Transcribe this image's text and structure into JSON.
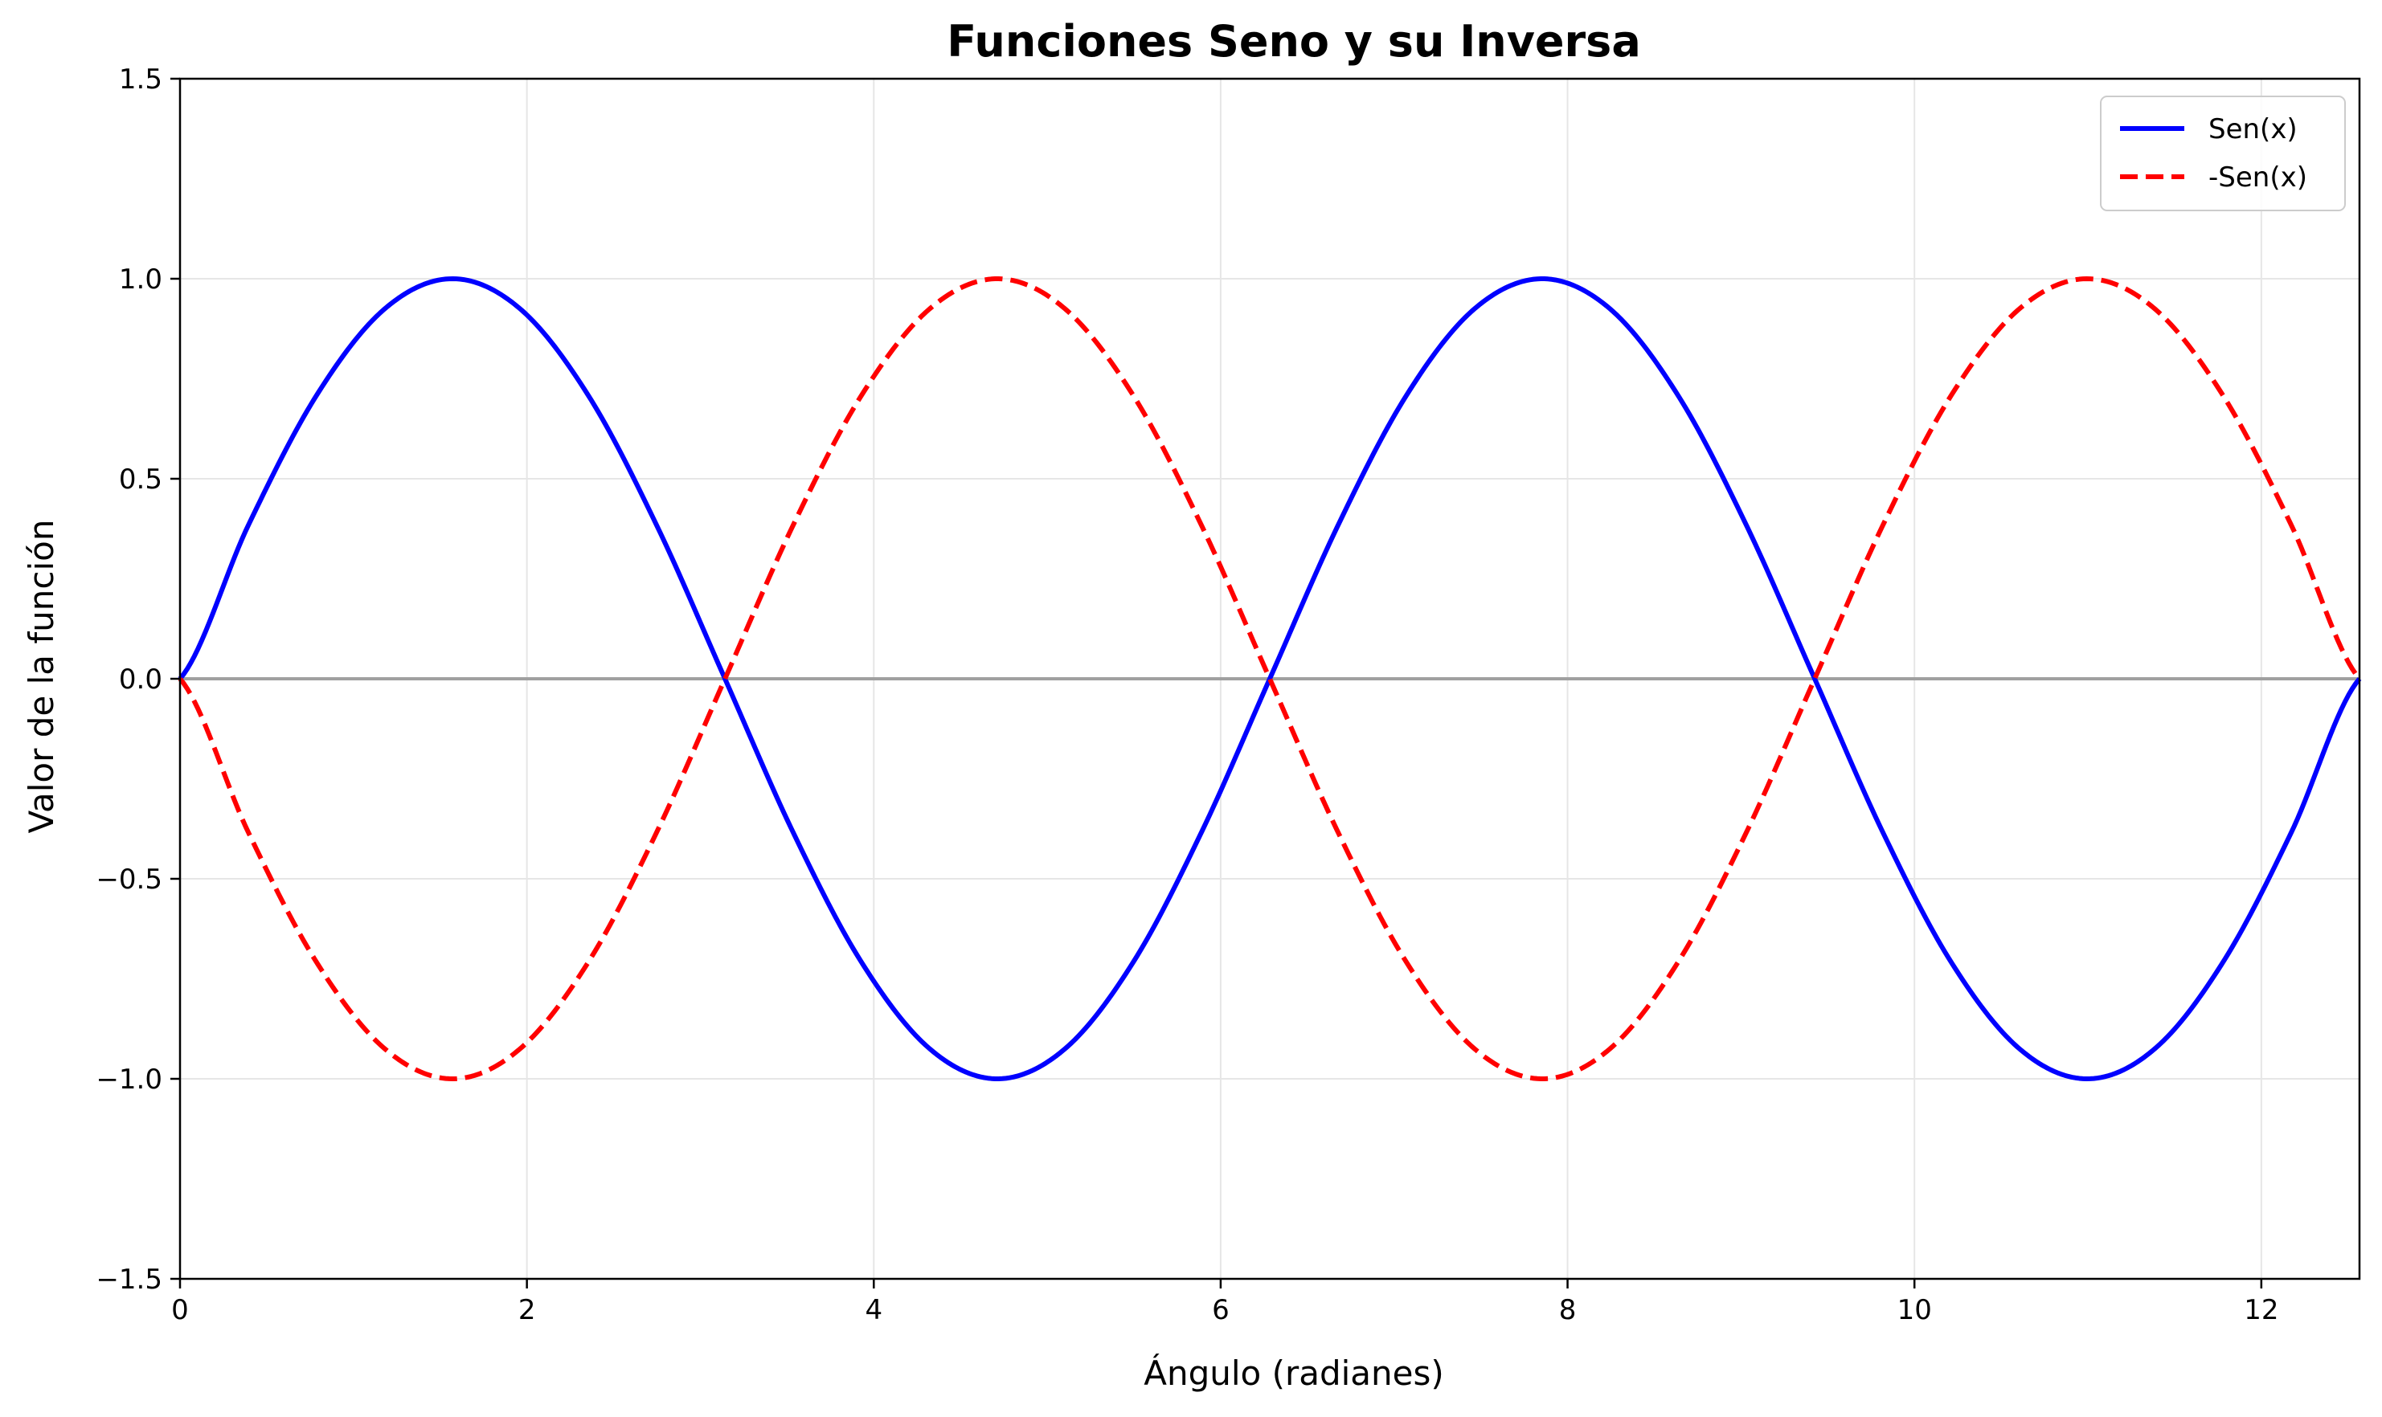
{
  "chart_data": {
    "type": "line",
    "title": "Funciones Seno y su Inversa",
    "xlabel": "Ángulo (radianes)",
    "ylabel": "Valor de la función",
    "xlim": [
      0,
      12.566
    ],
    "ylim": [
      -1.5,
      1.5
    ],
    "x_ticks": [
      0,
      2,
      4,
      6,
      8,
      10,
      12
    ],
    "x_tick_labels": [
      "0",
      "2",
      "4",
      "6",
      "8",
      "10",
      "12"
    ],
    "y_ticks": [
      -1.5,
      -1.0,
      -0.5,
      0.0,
      0.5,
      1.0,
      1.5
    ],
    "y_tick_labels": [
      "−1.5",
      "−1.0",
      "−0.5",
      "0.0",
      "0.5",
      "1.0",
      "1.5"
    ],
    "grid": true,
    "legend_position": "top-right",
    "reference_line": {
      "y": 0,
      "color": "#a0a0a0"
    },
    "series": [
      {
        "name": "Sen(x)",
        "color": "#0000ff",
        "style": "solid",
        "x": [
          0,
          0.393,
          0.785,
          1.178,
          1.571,
          1.963,
          2.356,
          2.749,
          3.142,
          3.534,
          3.927,
          4.32,
          4.712,
          5.105,
          5.498,
          5.89,
          6.283,
          6.676,
          7.069,
          7.461,
          7.854,
          8.247,
          8.639,
          9.032,
          9.425,
          9.817,
          10.21,
          10.603,
          10.996,
          11.388,
          11.781,
          12.174,
          12.566
        ],
        "y": [
          0,
          0.383,
          0.707,
          0.924,
          1.0,
          0.924,
          0.707,
          0.383,
          0,
          -0.383,
          -0.707,
          -0.924,
          -1.0,
          -0.924,
          -0.707,
          -0.383,
          0,
          0.383,
          0.707,
          0.924,
          1.0,
          0.924,
          0.707,
          0.383,
          0,
          -0.383,
          -0.707,
          -0.924,
          -1.0,
          -0.924,
          -0.707,
          -0.383,
          0
        ]
      },
      {
        "name": "-Sen(x)",
        "color": "#ff0000",
        "style": "dashed",
        "x": [
          0,
          0.393,
          0.785,
          1.178,
          1.571,
          1.963,
          2.356,
          2.749,
          3.142,
          3.534,
          3.927,
          4.32,
          4.712,
          5.105,
          5.498,
          5.89,
          6.283,
          6.676,
          7.069,
          7.461,
          7.854,
          8.247,
          8.639,
          9.032,
          9.425,
          9.817,
          10.21,
          10.603,
          10.996,
          11.388,
          11.781,
          12.174,
          12.566
        ],
        "y": [
          0,
          -0.383,
          -0.707,
          -0.924,
          -1.0,
          -0.924,
          -0.707,
          -0.383,
          0,
          0.383,
          0.707,
          0.924,
          1.0,
          0.924,
          0.707,
          0.383,
          0,
          -0.383,
          -0.707,
          -0.924,
          -1.0,
          -0.924,
          -0.707,
          -0.383,
          0,
          0.383,
          0.707,
          0.924,
          1.0,
          0.924,
          0.707,
          0.383,
          0
        ]
      }
    ]
  }
}
